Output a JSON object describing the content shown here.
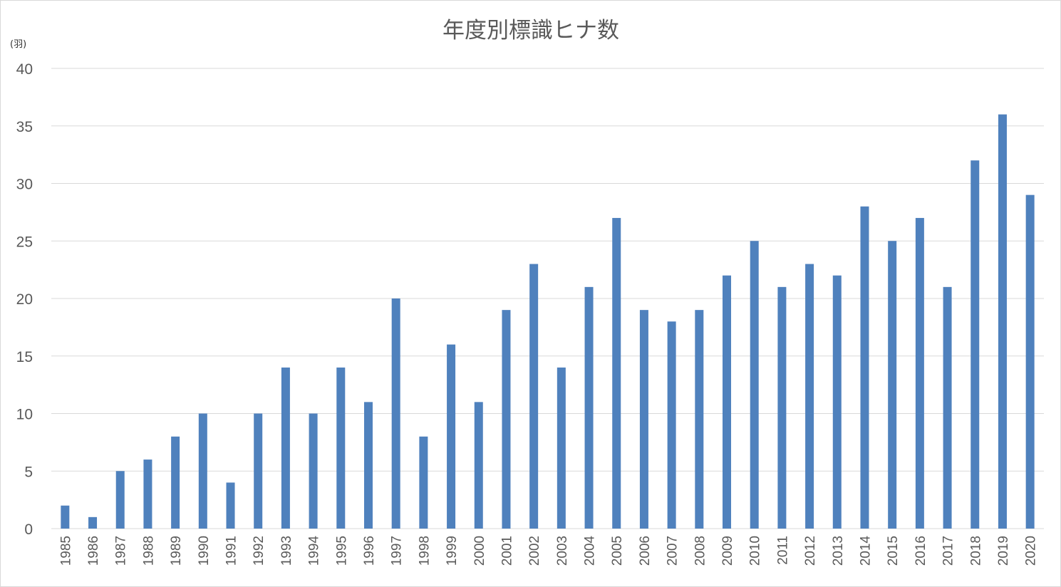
{
  "chart_data": {
    "type": "bar",
    "title": "年度別標識ヒナ数",
    "ylabel": "(羽)",
    "xlabel": "",
    "ylim": [
      0,
      40
    ],
    "yticks": [
      0,
      5,
      10,
      15,
      20,
      25,
      30,
      35,
      40
    ],
    "grid": true,
    "bar_color": "#4f81bd",
    "categories": [
      "1985",
      "1986",
      "1987",
      "1988",
      "1989",
      "1990",
      "1991",
      "1992",
      "1993",
      "1994",
      "1995",
      "1996",
      "1997",
      "1998",
      "1999",
      "2000",
      "2001",
      "2002",
      "2003",
      "2004",
      "2005",
      "2006",
      "2007",
      "2008",
      "2009",
      "2010",
      "2011",
      "2012",
      "2013",
      "2014",
      "2015",
      "2016",
      "2017",
      "2018",
      "2019",
      "2020"
    ],
    "values": [
      2,
      1,
      5,
      6,
      8,
      10,
      4,
      10,
      14,
      10,
      14,
      11,
      20,
      8,
      16,
      11,
      19,
      23,
      14,
      21,
      27,
      19,
      18,
      19,
      22,
      25,
      21,
      23,
      22,
      28,
      25,
      27,
      21,
      32,
      36,
      29
    ]
  }
}
